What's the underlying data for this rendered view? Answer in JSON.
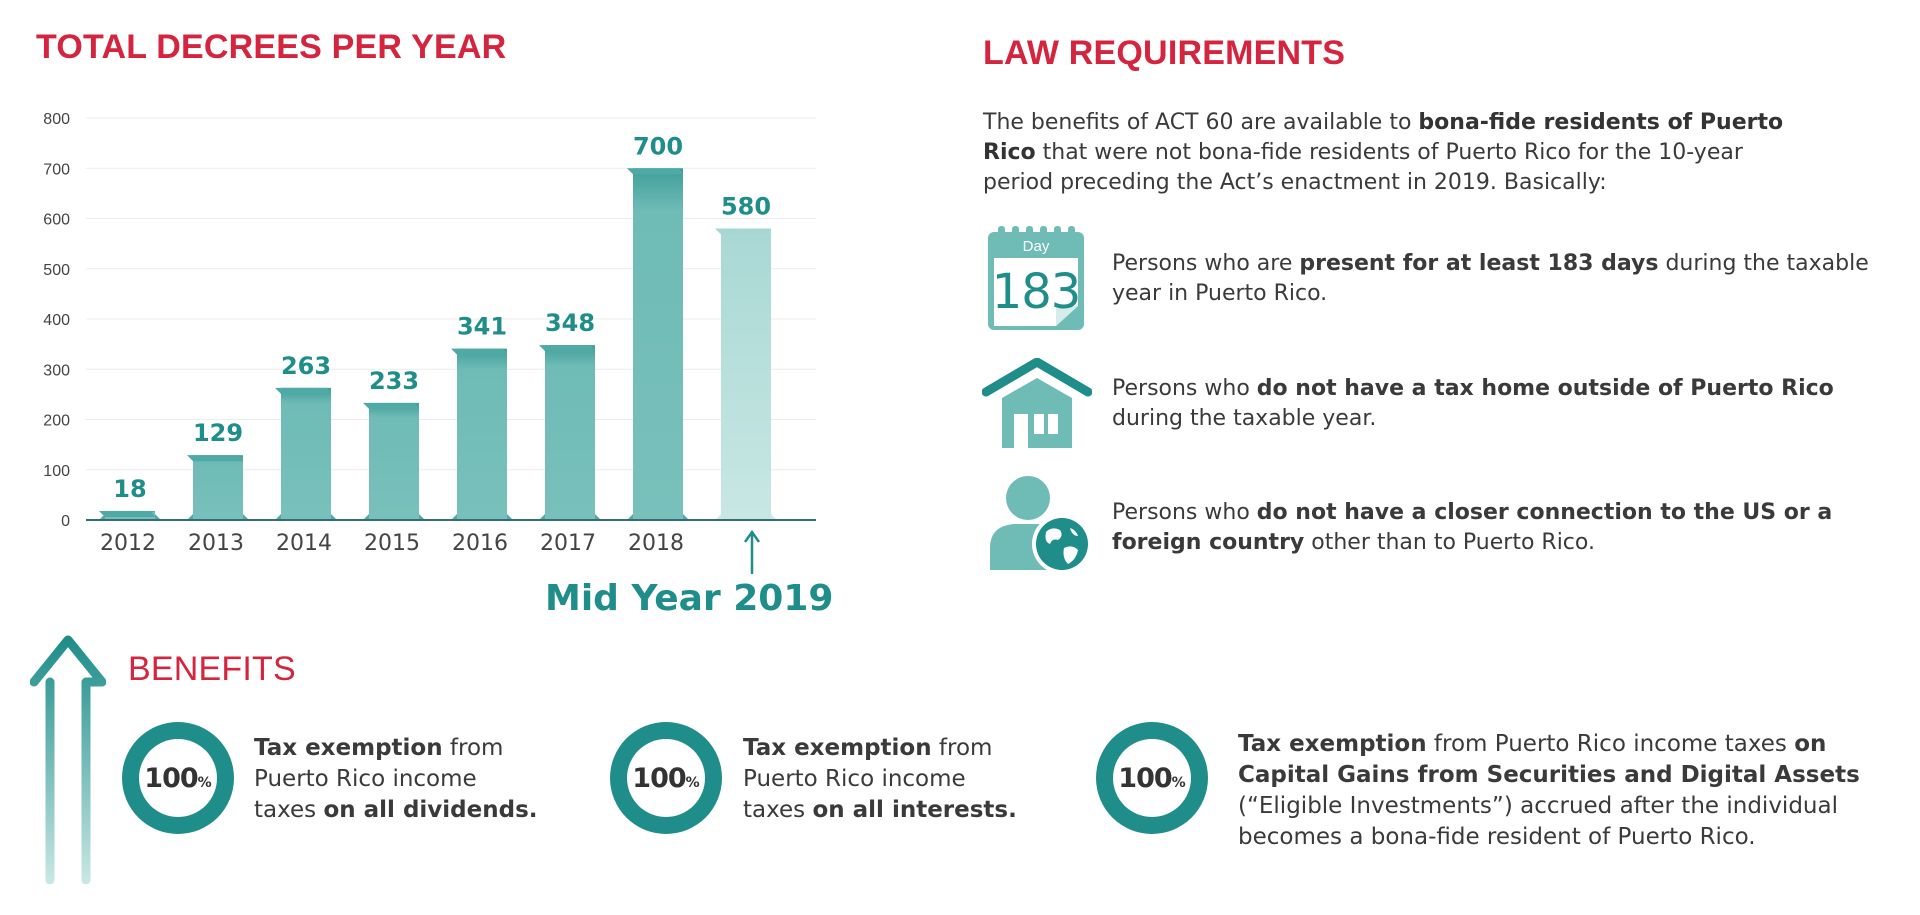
{
  "chart_data": {
    "type": "bar",
    "title": "TOTAL DECREES PER YEAR",
    "categories": [
      "2012",
      "2013",
      "2014",
      "2015",
      "2016",
      "2017",
      "2018",
      ""
    ],
    "values": [
      18,
      129,
      263,
      233,
      341,
      348,
      700,
      580
    ],
    "yticks": [
      "0",
      "100",
      "200",
      "300",
      "400",
      "500",
      "600",
      "700",
      "800"
    ],
    "ylim": [
      0,
      800
    ],
    "annotation": "Mid Year 2019",
    "colors": {
      "bar": "#6fbbb6",
      "bar_top": "#4fa9a4",
      "bar_partial": "#c3e3e0",
      "label": "#1f8d8a"
    }
  },
  "law": {
    "title": "LAW REQUIREMENTS",
    "intro": {
      "a": "The benefits of ACT 60 are available to ",
      "b": "bona-fide residents of Puerto Rico",
      "c": " that were not bona-fide residents of Puerto Rico for the 10-year period preceding the Act’s enactment in 2019. Basically:"
    },
    "calendar": {
      "top": "Day",
      "number": "183"
    },
    "items": [
      {
        "icon": "calendar-icon",
        "pre": "Persons who are ",
        "bold": "present for at least 183 days",
        "post": " during the taxable year in Puerto Rico."
      },
      {
        "icon": "house-icon",
        "pre": "Persons who ",
        "bold": "do not have a tax home outside of Puerto Rico",
        "post": " during the taxable year."
      },
      {
        "icon": "person-globe-icon",
        "pre": "Persons who ",
        "bold": "do not have a closer connection to the US or a foreign country",
        "post": " other than to Puerto Rico."
      }
    ]
  },
  "benefits": {
    "title": "BENEFITS",
    "items": [
      {
        "num": "100",
        "pct": "%",
        "bold1": "Tax exemption",
        "mid": " from Puerto Rico income taxes ",
        "bold2": "on all dividends.",
        "tail": ""
      },
      {
        "num": "100",
        "pct": "%",
        "bold1": "Tax exemption",
        "mid": " from Puerto Rico income taxes ",
        "bold2": "on all interests.",
        "tail": ""
      },
      {
        "num": "100",
        "pct": "%",
        "bold1": "Tax exemption",
        "mid": " from Puerto Rico income taxes ",
        "bold2": "on Capital Gains from Securities and Digital Assets",
        "tail": " (“Eligible Investments”) accrued after the individual becomes a bona-fide resident of Puerto Rico."
      }
    ]
  }
}
